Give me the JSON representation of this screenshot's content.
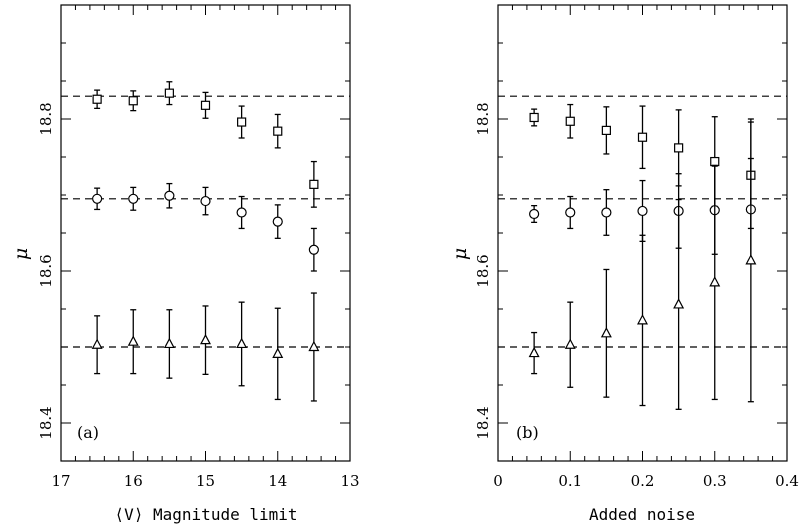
{
  "chart_data": [
    {
      "panel_label": "(a)",
      "type": "scatter",
      "xlabel": "⟨V⟩ Magnitude limit",
      "ylabel": "μ",
      "xlim": [
        17,
        13
      ],
      "ylim": [
        18.35,
        18.95
      ],
      "xticks": [
        17,
        16,
        15,
        14,
        13
      ],
      "yticks": [
        18.4,
        18.6,
        18.8
      ],
      "reference_lines": [
        18.83,
        18.695,
        18.5
      ],
      "series": [
        {
          "marker": "square",
          "points": [
            {
              "x": 16.5,
              "y": 18.826,
              "err": 0.012
            },
            {
              "x": 16.0,
              "y": 18.824,
              "err": 0.013
            },
            {
              "x": 15.5,
              "y": 18.834,
              "err": 0.015
            },
            {
              "x": 15.0,
              "y": 18.818,
              "err": 0.017
            },
            {
              "x": 14.5,
              "y": 18.796,
              "err": 0.021
            },
            {
              "x": 14.0,
              "y": 18.784,
              "err": 0.022
            },
            {
              "x": 13.5,
              "y": 18.714,
              "err": 0.03
            }
          ]
        },
        {
          "marker": "circle",
          "points": [
            {
              "x": 16.5,
              "y": 18.695,
              "err": 0.014
            },
            {
              "x": 16.0,
              "y": 18.695,
              "err": 0.015
            },
            {
              "x": 15.5,
              "y": 18.699,
              "err": 0.016
            },
            {
              "x": 15.0,
              "y": 18.692,
              "err": 0.018
            },
            {
              "x": 14.5,
              "y": 18.677,
              "err": 0.021
            },
            {
              "x": 14.0,
              "y": 18.665,
              "err": 0.022
            },
            {
              "x": 13.5,
              "y": 18.628,
              "err": 0.028
            }
          ]
        },
        {
          "marker": "triangle",
          "points": [
            {
              "x": 16.5,
              "y": 18.503,
              "err": 0.038
            },
            {
              "x": 16.0,
              "y": 18.507,
              "err": 0.042
            },
            {
              "x": 15.5,
              "y": 18.504,
              "err": 0.045
            },
            {
              "x": 15.0,
              "y": 18.509,
              "err": 0.045
            },
            {
              "x": 14.5,
              "y": 18.504,
              "err": 0.055
            },
            {
              "x": 14.0,
              "y": 18.491,
              "err": 0.06
            },
            {
              "x": 13.5,
              "y": 18.5,
              "err": 0.071
            }
          ]
        }
      ]
    },
    {
      "panel_label": "(b)",
      "type": "scatter",
      "xlabel": "Added noise",
      "ylabel": "μ",
      "xlim": [
        0,
        0.4
      ],
      "ylim": [
        18.35,
        18.95
      ],
      "xticks": [
        0,
        0.1,
        0.2,
        0.3,
        0.4
      ],
      "yticks": [
        18.4,
        18.6,
        18.8
      ],
      "reference_lines": [
        18.83,
        18.695,
        18.5
      ],
      "series": [
        {
          "marker": "square",
          "points": [
            {
              "x": 0.05,
              "y": 18.802,
              "err": 0.011
            },
            {
              "x": 0.1,
              "y": 18.797,
              "err": 0.022
            },
            {
              "x": 0.15,
              "y": 18.785,
              "err": 0.031
            },
            {
              "x": 0.2,
              "y": 18.776,
              "err": 0.041
            },
            {
              "x": 0.25,
              "y": 18.762,
              "err": 0.05
            },
            {
              "x": 0.3,
              "y": 18.744,
              "err": 0.059
            },
            {
              "x": 0.35,
              "y": 18.726,
              "err": 0.07
            }
          ]
        },
        {
          "marker": "circle",
          "points": [
            {
              "x": 0.05,
              "y": 18.675,
              "err": 0.011
            },
            {
              "x": 0.1,
              "y": 18.677,
              "err": 0.021
            },
            {
              "x": 0.15,
              "y": 18.677,
              "err": 0.03
            },
            {
              "x": 0.2,
              "y": 18.679,
              "err": 0.04
            },
            {
              "x": 0.25,
              "y": 18.679,
              "err": 0.049
            },
            {
              "x": 0.3,
              "y": 18.68,
              "err": 0.058
            },
            {
              "x": 0.35,
              "y": 18.681,
              "err": 0.067
            }
          ]
        },
        {
          "marker": "triangle",
          "points": [
            {
              "x": 0.05,
              "y": 18.492,
              "err": 0.027
            },
            {
              "x": 0.1,
              "y": 18.503,
              "err": 0.056
            },
            {
              "x": 0.15,
              "y": 18.518,
              "err": 0.084
            },
            {
              "x": 0.2,
              "y": 18.535,
              "err": 0.112
            },
            {
              "x": 0.25,
              "y": 18.556,
              "err": 0.138
            },
            {
              "x": 0.3,
              "y": 18.585,
              "err": 0.154
            },
            {
              "x": 0.35,
              "y": 18.614,
              "err": 0.186
            }
          ]
        }
      ]
    }
  ]
}
